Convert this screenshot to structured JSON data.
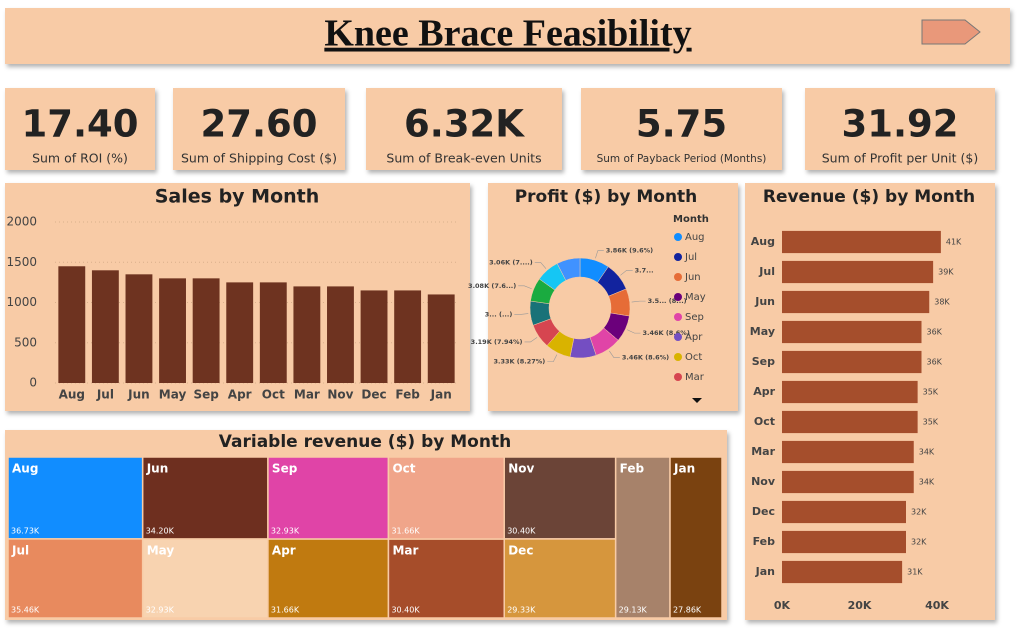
{
  "header": {
    "title": "Knee Brace Feasibility"
  },
  "kpis": [
    {
      "value": "17.40",
      "label": "Sum of ROI (%)"
    },
    {
      "value": "27.60",
      "label": "Sum of Shipping Cost ($)"
    },
    {
      "value": "6.32K",
      "label": "Sum of Break-even Units"
    },
    {
      "value": "5.75",
      "label": "Sum of Payback Period (Months)"
    },
    {
      "value": "31.92",
      "label": "Sum of Profit per Unit ($)"
    }
  ],
  "chart_data": [
    {
      "type": "bar",
      "title": "Sales by Month",
      "categories": [
        "Aug",
        "Jul",
        "Jun",
        "May",
        "Sep",
        "Apr",
        "Oct",
        "Mar",
        "Nov",
        "Dec",
        "Feb",
        "Jan"
      ],
      "values": [
        1450,
        1400,
        1350,
        1300,
        1300,
        1250,
        1250,
        1200,
        1200,
        1150,
        1150,
        1100
      ],
      "color": "#6e3320",
      "ylim": [
        0,
        2000
      ],
      "yticks": [
        0,
        500,
        1000,
        1500,
        2000
      ],
      "grid": true
    },
    {
      "type": "pie",
      "title": "Profit ($) by Month",
      "legend_title": "Month",
      "donut": true,
      "categories": [
        "Aug",
        "Jul",
        "Jun",
        "May",
        "Sep",
        "Apr",
        "Oct",
        "Mar",
        null,
        null,
        null,
        null
      ],
      "values": [
        3860,
        3700,
        3550,
        3460,
        3460,
        3400,
        3330,
        3190,
        3150,
        3080,
        3060,
        3040
      ],
      "value_labels": [
        "3.86K (9.6%)",
        "3.7...",
        "3.5... (8...)",
        "3.46K (8.6%)",
        "3.46K (8.6%)",
        null,
        "3.33K (8.27%)",
        "3.19K (7.94%)",
        "3... (...)",
        "3.08K (7.6...)",
        "3.06K (7....)",
        null
      ],
      "colors": [
        "#118dff",
        "#12239e",
        "#e66c37",
        "#6b007b",
        "#e044a7",
        "#744ec2",
        "#d9b300",
        "#d64550",
        "#197278",
        "#1aab40",
        "#15c6f4",
        "#4092ff"
      ]
    },
    {
      "type": "hbar",
      "title": "Revenue ($) by Month",
      "categories": [
        "Aug",
        "Jul",
        "Jun",
        "May",
        "Sep",
        "Apr",
        "Oct",
        "Mar",
        "Nov",
        "Dec",
        "Feb",
        "Jan"
      ],
      "values": [
        41000,
        39000,
        38000,
        36000,
        36000,
        35000,
        35000,
        34000,
        34000,
        32000,
        32000,
        31000
      ],
      "value_labels": [
        "41K",
        "39K",
        "38K",
        "36K",
        "36K",
        "35K",
        "35K",
        "34K",
        "34K",
        "32K",
        "32K",
        "31K"
      ],
      "color": "#a54e2c",
      "xlim": [
        0,
        50000
      ],
      "xticks": [
        {
          "value": 0,
          "label": "0K"
        },
        {
          "value": 20000,
          "label": "20K"
        },
        {
          "value": 40000,
          "label": "40K"
        }
      ]
    },
    {
      "type": "treemap",
      "title": "Variable revenue ($) by Month",
      "categories": [
        "Aug",
        "Jul",
        "Jun",
        "May",
        "Sep",
        "Apr",
        "Oct",
        "Mar",
        "Nov",
        "Dec",
        "Feb",
        "Jan"
      ],
      "values": [
        36730,
        35460,
        34200,
        32930,
        32930,
        31660,
        31660,
        30400,
        30400,
        29330,
        29130,
        27860
      ],
      "value_labels": [
        "36.73K",
        "35.46K",
        "34.20K",
        "32.93K",
        "32.93K",
        "31.66K",
        "31.66K",
        "30.40K",
        "30.40K",
        "29.33K",
        "29.13K",
        "27.86K"
      ],
      "colors": [
        "#118dff",
        "#e88a5e",
        "#6e2f1f",
        "#f8d3b0",
        "#e044a7",
        "#c07a10",
        "#f0a58a",
        "#a64d2a",
        "#6b4437",
        "#d6963d",
        "#a7826a",
        "#7a4210"
      ]
    }
  ]
}
